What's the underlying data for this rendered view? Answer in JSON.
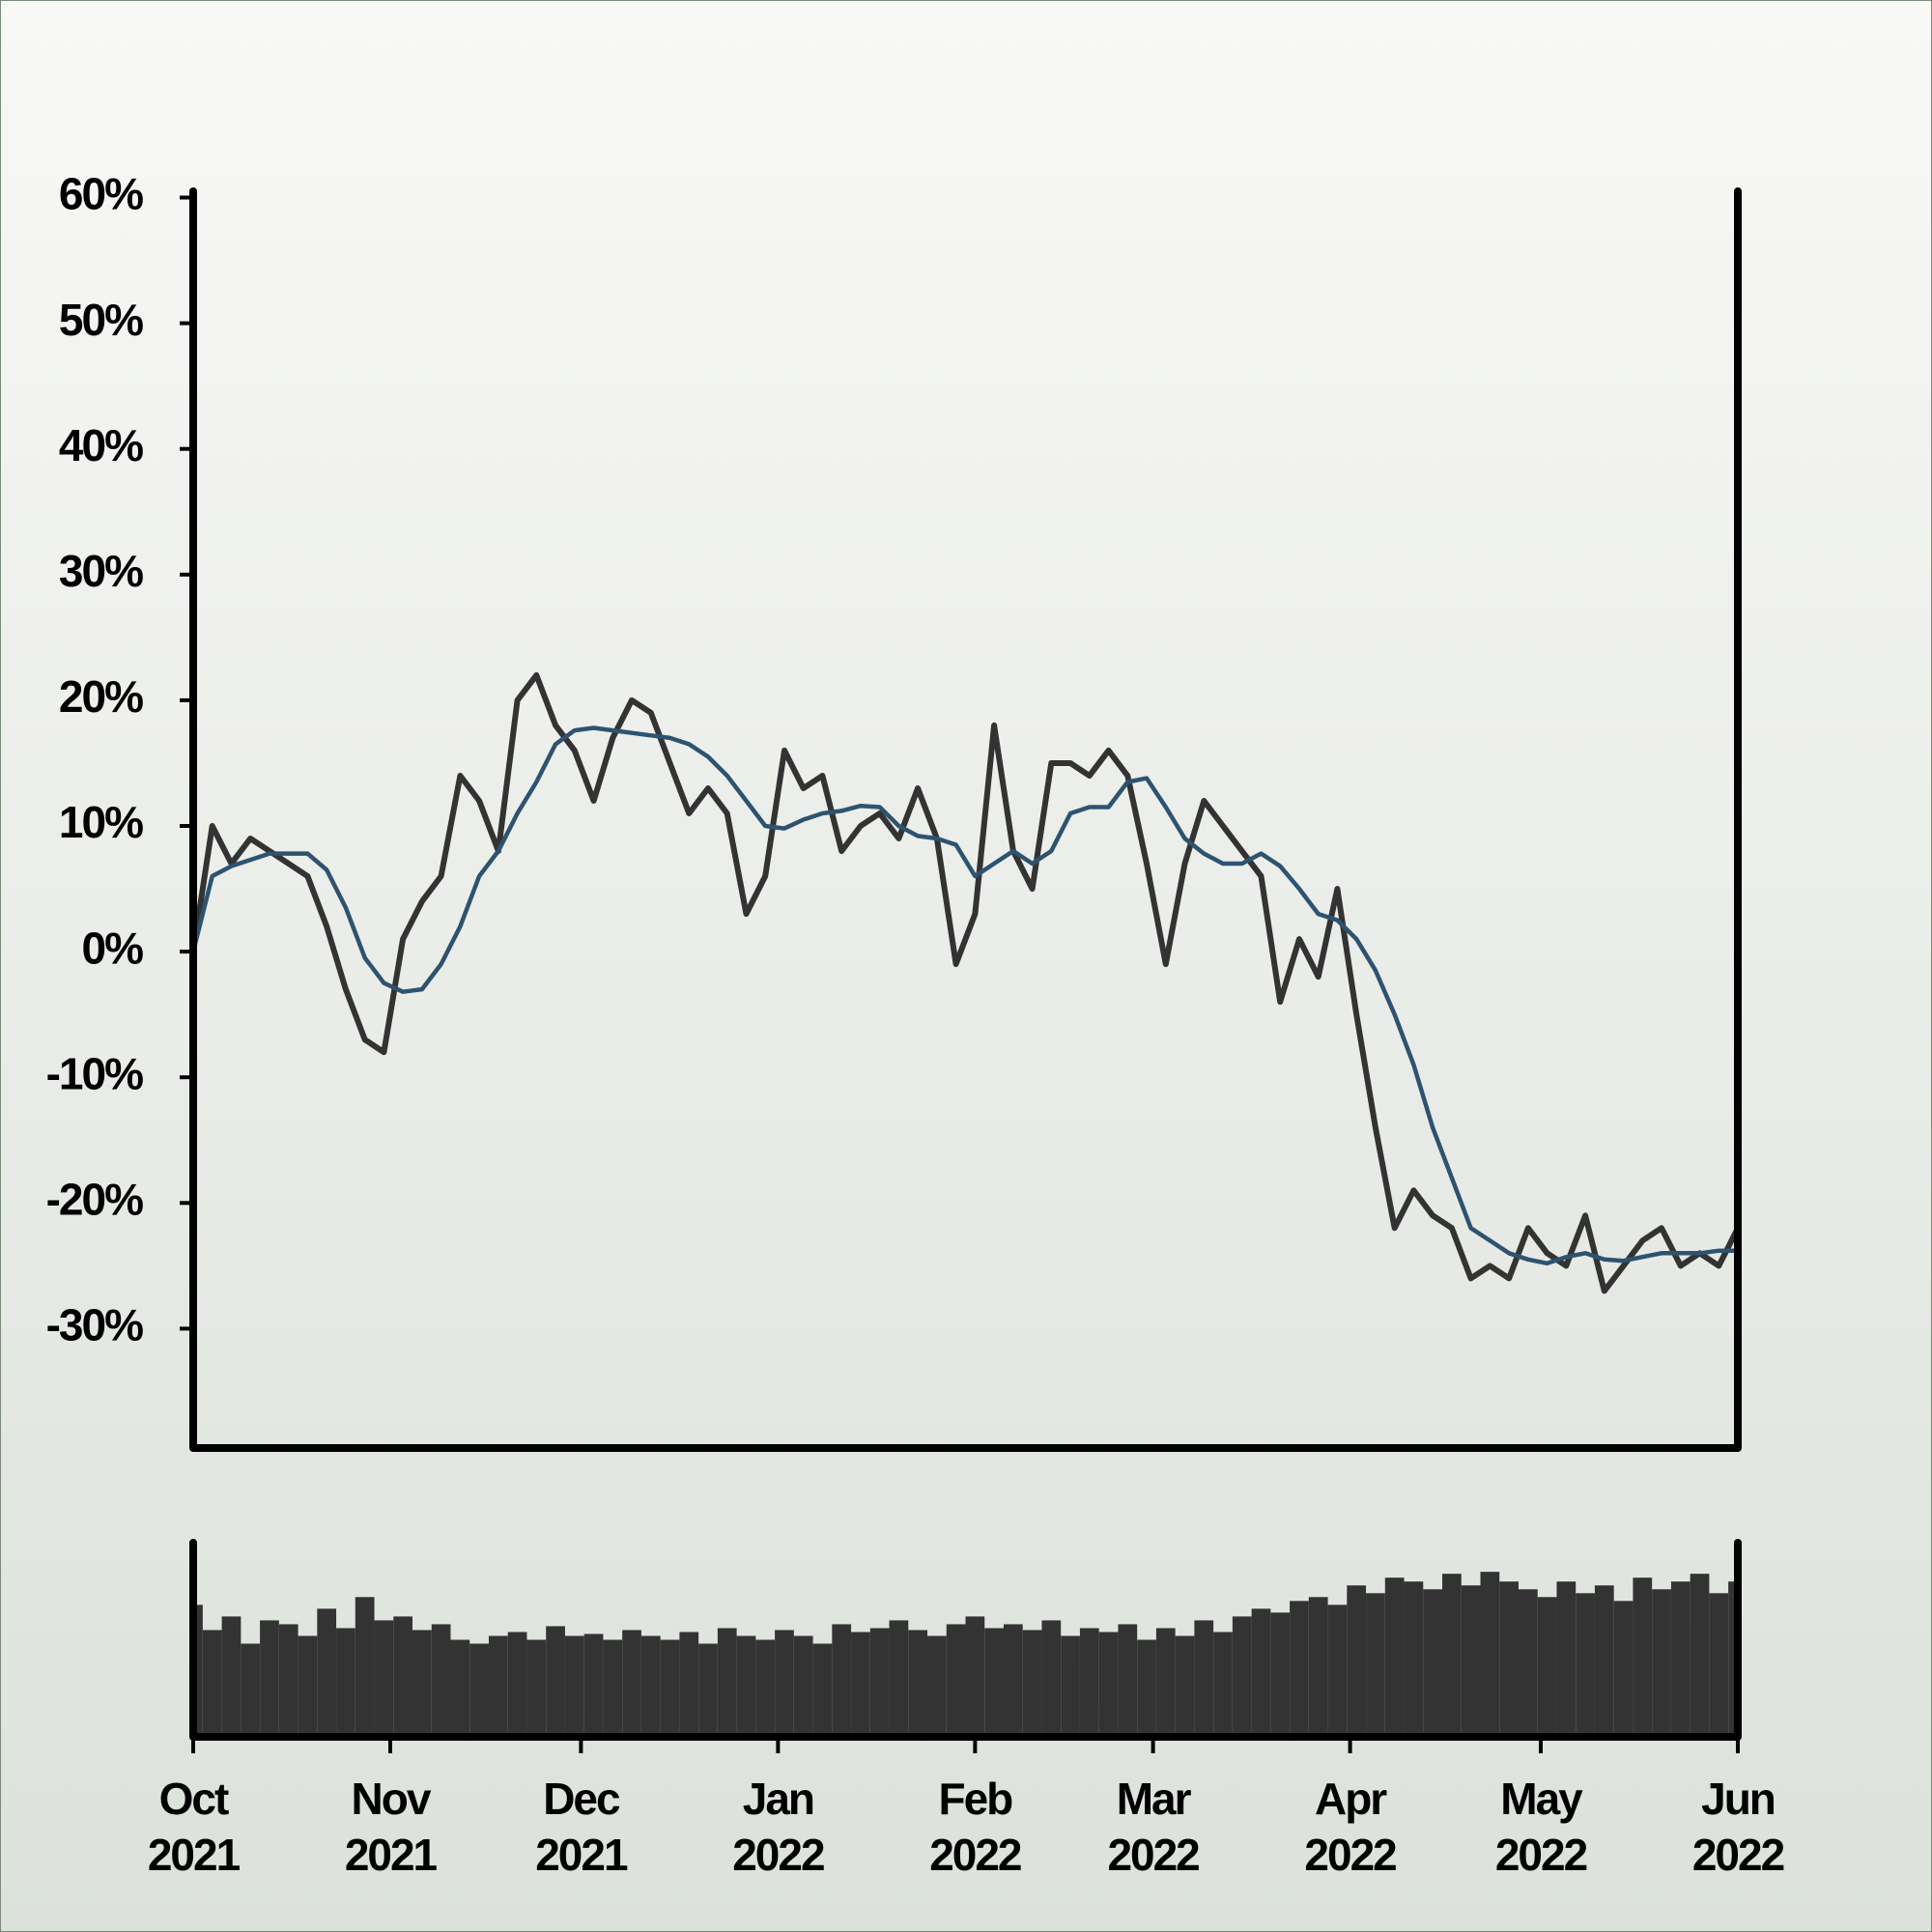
{
  "chart_data": [
    {
      "type": "line",
      "x": [
        0,
        3,
        6,
        9,
        12,
        15,
        18,
        21,
        24,
        27,
        30,
        33,
        36,
        39,
        42,
        45,
        48,
        51,
        54,
        57,
        60,
        63,
        66,
        69,
        72,
        75,
        78,
        81,
        84,
        87,
        90,
        93,
        96,
        99,
        102,
        105,
        108,
        111,
        114,
        117,
        120,
        123,
        126,
        129,
        132,
        135,
        138,
        141,
        144,
        147,
        150,
        153,
        156,
        159,
        162,
        165,
        168,
        171,
        174,
        177,
        180,
        183,
        186,
        189,
        192,
        195,
        198,
        201,
        204,
        207,
        210,
        213,
        216,
        219,
        222,
        225,
        228,
        231,
        234,
        237,
        240,
        243
      ],
      "series": [
        {
          "color": "#333333",
          "values": [
            0,
            10,
            7,
            9,
            8,
            7,
            6,
            2,
            -3,
            -7,
            -8,
            1,
            4,
            6,
            14,
            12,
            8,
            20,
            22,
            18,
            16,
            12,
            17,
            20,
            19,
            15,
            11,
            13,
            11,
            3,
            6,
            16,
            13,
            14,
            8,
            10,
            11,
            9,
            13,
            9,
            -1,
            3,
            18,
            8,
            5,
            15,
            15,
            14,
            16,
            14,
            7,
            -1,
            7,
            12,
            10,
            8,
            6,
            -4,
            1,
            -2,
            5,
            -5,
            -14,
            -22,
            -19,
            -21,
            -22,
            -26,
            -25,
            -26,
            -22,
            -24,
            -25,
            -21,
            -27,
            -25,
            -23,
            -22,
            -25,
            -24,
            -25,
            -22
          ]
        },
        {
          "color": "#2e5370",
          "values": [
            0,
            6,
            6.8,
            7.3,
            7.8,
            7.8,
            7.8,
            6.5,
            3.5,
            -0.5,
            -2.5,
            -3.2,
            -3,
            -1,
            2,
            6,
            8,
            11,
            13.5,
            16.5,
            17.6,
            17.8,
            17.6,
            17.4,
            17.2,
            17,
            16.5,
            15.5,
            14,
            12,
            10,
            9.8,
            10.5,
            11,
            11.2,
            11.6,
            11.5,
            10,
            9.2,
            9,
            8.5,
            6,
            7,
            8,
            7,
            8,
            11,
            11.5,
            11.5,
            13.5,
            13.8,
            11.5,
            9,
            7.8,
            7,
            7,
            7.8,
            6.8,
            5,
            3,
            2.5,
            1,
            -1.5,
            -5,
            -9,
            -14,
            -18,
            -22,
            -23,
            -24,
            -24.5,
            -24.8,
            -24.3,
            -24,
            -24.5,
            -24.6,
            -24.3,
            -24,
            -24,
            -24,
            -23.8,
            -23.8
          ]
        }
      ],
      "xlim": [
        0,
        243
      ],
      "ylim": [
        -39.5,
        60.5
      ],
      "yticks": [
        {
          "value": 60,
          "label": "60%"
        },
        {
          "value": 50,
          "label": "50%"
        },
        {
          "value": 40,
          "label": "40%"
        },
        {
          "value": 30,
          "label": "30%"
        },
        {
          "value": 20,
          "label": "20%"
        },
        {
          "value": 10,
          "label": "10%"
        },
        {
          "value": 0,
          "label": "0%"
        },
        {
          "value": -10,
          "label": "-10%"
        },
        {
          "value": -20,
          "label": "-20%"
        },
        {
          "value": -30,
          "label": "-30%"
        }
      ]
    },
    {
      "type": "bar",
      "x": [
        0,
        3,
        6,
        9,
        12,
        15,
        18,
        21,
        24,
        27,
        30,
        33,
        36,
        39,
        42,
        45,
        48,
        51,
        54,
        57,
        60,
        63,
        66,
        69,
        72,
        75,
        78,
        81,
        84,
        87,
        90,
        93,
        96,
        99,
        102,
        105,
        108,
        111,
        114,
        117,
        120,
        123,
        126,
        129,
        132,
        135,
        138,
        141,
        144,
        147,
        150,
        153,
        156,
        159,
        162,
        165,
        168,
        171,
        174,
        177,
        180,
        183,
        186,
        189,
        192,
        195,
        198,
        201,
        204,
        207,
        210,
        213,
        216,
        219,
        222,
        225,
        228,
        231,
        234,
        237,
        240,
        243
      ],
      "values": [
        68,
        55,
        62,
        48,
        60,
        58,
        52,
        66,
        56,
        72,
        60,
        62,
        55,
        58,
        50,
        48,
        52,
        54,
        50,
        57,
        52,
        53,
        50,
        55,
        52,
        50,
        54,
        48,
        56,
        52,
        50,
        55,
        52,
        48,
        58,
        54,
        56,
        60,
        55,
        52,
        58,
        62,
        56,
        58,
        55,
        60,
        52,
        56,
        54,
        58,
        50,
        56,
        52,
        60,
        54,
        62,
        66,
        64,
        70,
        72,
        68,
        78,
        74,
        82,
        80,
        76,
        84,
        78,
        85,
        80,
        76,
        72,
        80,
        74,
        78,
        70,
        82,
        76,
        80,
        84,
        74,
        80
      ],
      "color": "#333333",
      "xlim": [
        0,
        243
      ],
      "ylim": [
        0,
        100
      ],
      "xticks": [
        {
          "value": 0,
          "label": "Oct 2021"
        },
        {
          "value": 31,
          "label": "Nov 2021"
        },
        {
          "value": 61,
          "label": "Dec 2021"
        },
        {
          "value": 92,
          "label": "Jan 2022"
        },
        {
          "value": 123,
          "label": "Feb 2022"
        },
        {
          "value": 151,
          "label": "Mar 2022"
        },
        {
          "value": 182,
          "label": "Apr 2022"
        },
        {
          "value": 212,
          "label": "May 2022"
        },
        {
          "value": 243,
          "label": "Jun 2022"
        }
      ]
    }
  ]
}
